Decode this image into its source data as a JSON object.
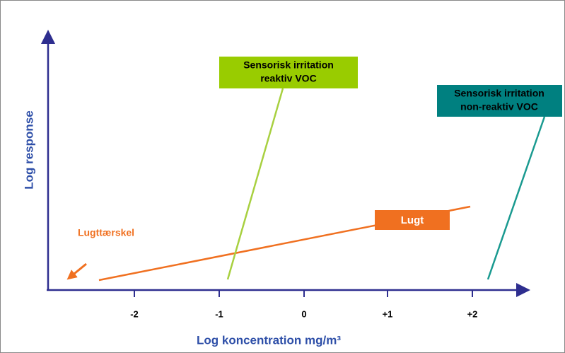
{
  "x_axis": {
    "label": "Log koncentration mg/m³",
    "ticks": [
      "-2",
      "-1",
      "0",
      "+1",
      "+2"
    ]
  },
  "y_axis": {
    "label": "Log response"
  },
  "labels": {
    "threshold": "Lugttærskel",
    "odor": "Lugt",
    "reactive": [
      "Sensorisk irritation",
      "reaktiv VOC"
    ],
    "nonreactive": [
      "Sensorisk irritation",
      "non-reaktiv VOC"
    ]
  }
}
